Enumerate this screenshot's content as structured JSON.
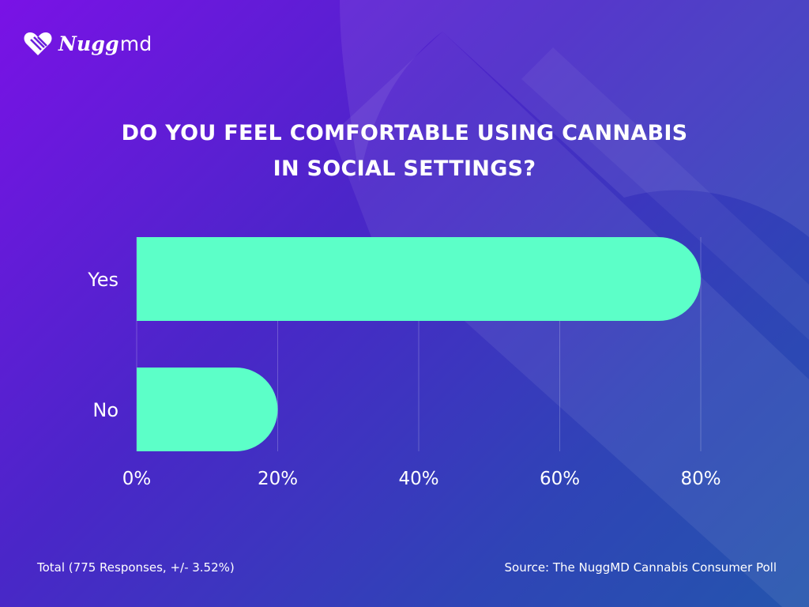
{
  "brand": {
    "logo_word": "Nugg",
    "logo_suffix": "md",
    "accent": "#5cffc8"
  },
  "header": {
    "title_line1": "DO YOU FEEL COMFORTABLE USING CANNABIS",
    "title_line2": "IN SOCIAL SETTINGS?"
  },
  "footer": {
    "total_note": "Total (775 Responses, +/- 3.52%)",
    "source_note": "Source: The NuggMD Cannabis Consumer Poll"
  },
  "chart_data": {
    "type": "bar",
    "orientation": "horizontal",
    "title": "DO YOU FEEL COMFORTABLE USING CANNABIS IN SOCIAL SETTINGS?",
    "categories": [
      "Yes",
      "No"
    ],
    "values": [
      80,
      20
    ],
    "unit": "%",
    "xlim": [
      0,
      80
    ],
    "x_ticks": [
      "0%",
      "20%",
      "40%",
      "60%",
      "80%"
    ],
    "grid": true,
    "bar_color": "#5cffc8"
  }
}
